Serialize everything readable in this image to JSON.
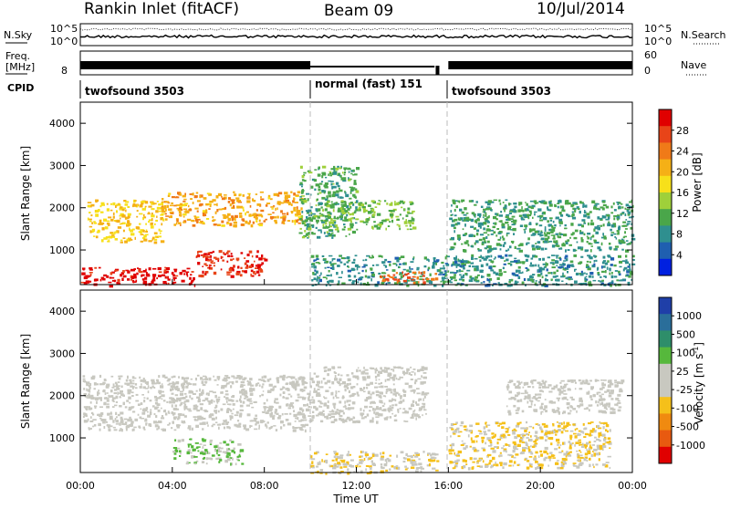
{
  "header": {
    "station": "Rankin Inlet (fitACF)",
    "beam": "Beam 09",
    "date": "10/Jul/2014"
  },
  "param_strip": {
    "left_label_top": "N.Sky",
    "left_label_freq_1": "Freq.",
    "left_label_freq_2": "[MHz]",
    "left_label_cpid": "CPID",
    "right_label_search": "N.Search",
    "right_label_nave": "Nave",
    "noise_ticks_left": [
      "10^5",
      "10^0"
    ],
    "noise_ticks_right": [
      "10^5",
      "10^0"
    ],
    "freq_ticks_left": [
      "8"
    ],
    "nave_ticks_right": [
      "60",
      "0"
    ],
    "cpid_segments": [
      {
        "label": "twofsound 3503",
        "start_hour": 0,
        "end_hour": 10
      },
      {
        "label": "normal (fast) 151",
        "start_hour": 10,
        "end_hour": 16
      },
      {
        "label": "twofsound 3503",
        "start_hour": 16,
        "end_hour": 24
      }
    ]
  },
  "x_axis": {
    "label": "Time UT",
    "ticks": [
      "00:00",
      "04:00",
      "08:00",
      "12:00",
      "16:00",
      "20:00",
      "00:00"
    ]
  },
  "power_panel": {
    "ylabel": "Slant Range [km]",
    "yticks": [
      "4000",
      "3000",
      "2000",
      "1000"
    ],
    "colorbar_label": "Power [dB]",
    "colorbar_ticks": [
      "28",
      "24",
      "20",
      "16",
      "12",
      "8",
      "4"
    ],
    "colors": [
      "#0020e0",
      "#1f5fb0",
      "#2f8f8f",
      "#4aa64a",
      "#9fd03a",
      "#f7e01a",
      "#f5b016",
      "#f07a18",
      "#e84418",
      "#e00000"
    ]
  },
  "velocity_panel": {
    "ylabel": "Slant Range [km]",
    "yticks": [
      "4000",
      "3000",
      "2000",
      "1000"
    ],
    "colorbar_label": "Velocity [m s",
    "colorbar_label_sup": "-1",
    "colorbar_label_end": "]",
    "colorbar_ticks": [
      "1000",
      "500",
      "100",
      "25",
      "-25",
      "-100",
      "-500",
      "-1000"
    ],
    "colors": [
      "#1f3fa8",
      "#2a6e9a",
      "#2e8e6a",
      "#56b83c",
      "#c8c8c0",
      "#c8c8c0",
      "#f5c01a",
      "#f08a10",
      "#e85a10",
      "#e00000"
    ]
  },
  "chart_data": [
    {
      "type": "heatmap",
      "title": "Power",
      "xlabel": "Time UT",
      "ylabel": "Slant Range [km]",
      "xlim": [
        0,
        24
      ],
      "ylim": [
        180,
        4500
      ],
      "color_scale": {
        "label": "Power [dB]",
        "range": [
          0,
          30
        ]
      },
      "regions": [
        {
          "t": [
            0.0,
            5.0
          ],
          "r": [
            180,
            600
          ],
          "value": 29
        },
        {
          "t": [
            0.3,
            3.5
          ],
          "r": [
            1200,
            2200
          ],
          "value": 18
        },
        {
          "t": [
            3.5,
            9.6
          ],
          "r": [
            1600,
            2400
          ],
          "value": 20
        },
        {
          "t": [
            5.0,
            8.0
          ],
          "r": [
            400,
            1000
          ],
          "value": 27
        },
        {
          "t": [
            9.5,
            12.0
          ],
          "r": [
            1300,
            3000
          ],
          "value": 10
        },
        {
          "t": [
            10.5,
            14.5
          ],
          "r": [
            1500,
            2200
          ],
          "value": 12
        },
        {
          "t": [
            10.0,
            24.0
          ],
          "r": [
            180,
            900
          ],
          "value": 8
        },
        {
          "t": [
            13.0,
            15.5
          ],
          "r": [
            250,
            500
          ],
          "value": 24
        },
        {
          "t": [
            16.0,
            24.0
          ],
          "r": [
            1000,
            2200
          ],
          "value": 9
        }
      ]
    },
    {
      "type": "heatmap",
      "title": "Velocity",
      "xlabel": "Time UT",
      "ylabel": "Slant Range [km]",
      "xlim": [
        0,
        24
      ],
      "ylim": [
        180,
        4500
      ],
      "color_scale": {
        "label": "Velocity [m s-1]",
        "range": [
          -1000,
          1000
        ]
      },
      "regions": [
        {
          "t": [
            0.0,
            10.0
          ],
          "r": [
            1200,
            2500
          ],
          "value": 0
        },
        {
          "t": [
            4.0,
            7.0
          ],
          "r": [
            400,
            1000
          ],
          "value": 200
        },
        {
          "t": [
            10.0,
            15.0
          ],
          "r": [
            1400,
            2700
          ],
          "value": 0
        },
        {
          "t": [
            10.0,
            15.5
          ],
          "r": [
            180,
            700
          ],
          "value": -150
        },
        {
          "t": [
            16.0,
            23.0
          ],
          "r": [
            300,
            1400
          ],
          "value": -200
        },
        {
          "t": [
            18.5,
            23.5
          ],
          "r": [
            1600,
            2400
          ],
          "value": 0
        }
      ]
    }
  ]
}
